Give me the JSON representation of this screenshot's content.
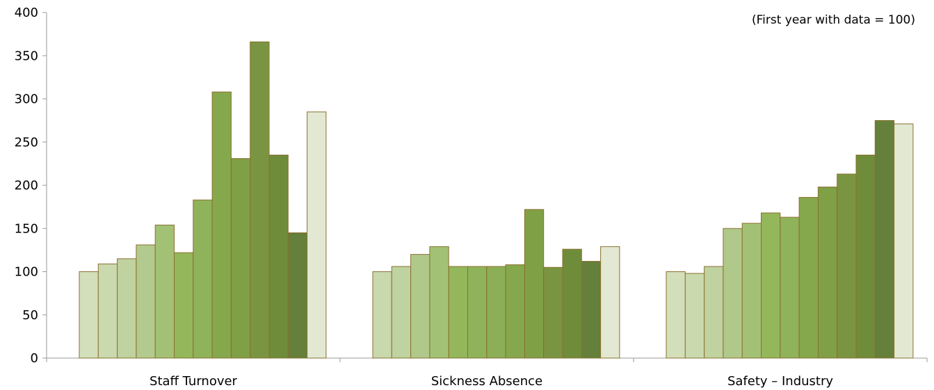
{
  "chart_data": {
    "type": "bar",
    "note": "(First year with data = 100)",
    "ylim": [
      0,
      400
    ],
    "yticks": [
      0,
      50,
      100,
      150,
      200,
      250,
      300,
      350,
      400
    ],
    "grid": false,
    "categories": [
      "Staff Turnover",
      "Sickness Absence",
      "Safety – Industry"
    ],
    "groups": [
      {
        "category": "Staff Turnover",
        "values": [
          100,
          109,
          115,
          131,
          154,
          122,
          183,
          308,
          231,
          366,
          235,
          145,
          285
        ],
        "colors": [
          "#d3dfba",
          "#cad9ae",
          "#bfd2a0",
          "#b2ca8e",
          "#a2c174",
          "#93b75a",
          "#8fb35a",
          "#86a84c",
          "#80a046",
          "#7a9542",
          "#6f8c3b",
          "#64803a",
          "#e2e8d2"
        ]
      },
      {
        "category": "Sickness Absence",
        "values": [
          100,
          106,
          120,
          129,
          106,
          106,
          106,
          108,
          172,
          105,
          126,
          112,
          129
        ],
        "colors": [
          "#c9d8ad",
          "#bfd3a0",
          "#b0c98b",
          "#a2c174",
          "#93b75a",
          "#8fb35a",
          "#8bae56",
          "#86a84c",
          "#80a046",
          "#7a9542",
          "#6f8c3b",
          "#64803a",
          "#e2e8d2"
        ]
      },
      {
        "category": "Safety – Industry",
        "values": [
          100,
          98,
          106,
          150,
          156,
          168,
          163,
          186,
          198,
          213,
          235,
          275,
          271
        ],
        "colors": [
          "#d3dfba",
          "#cad9ae",
          "#bfd2a0",
          "#b0c98b",
          "#a2c174",
          "#93b75a",
          "#8fb35a",
          "#86a84c",
          "#80a046",
          "#7a9542",
          "#6f8c3b",
          "#64803a",
          "#e2e8d2"
        ]
      }
    ]
  }
}
